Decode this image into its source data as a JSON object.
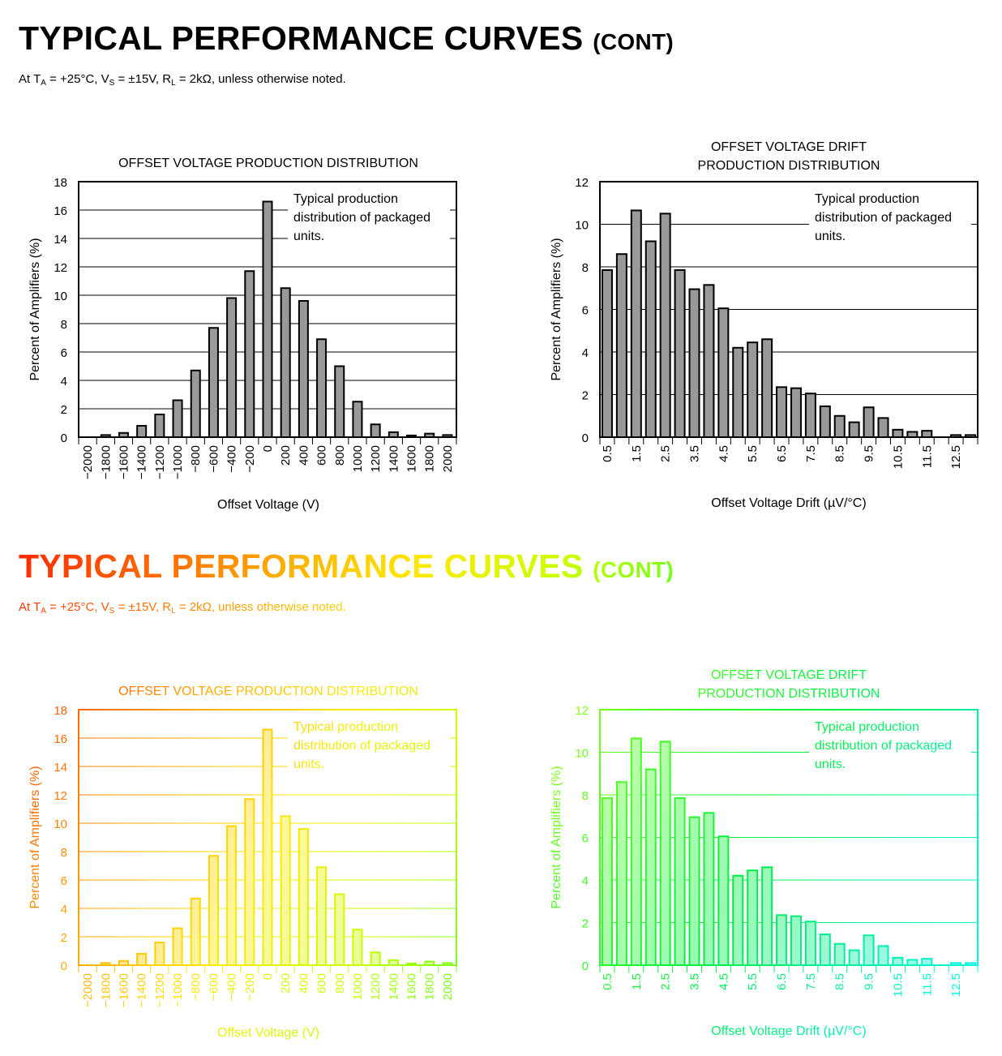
{
  "header": {
    "title": "TYPICAL PERFORMANCE CURVES",
    "title_suffix": "(CONT)",
    "conditions": {
      "p1": "At T",
      "s1": "A",
      "p2": " = +25°C, V",
      "s2": "S",
      "p3": " = ±15V,  R",
      "s3": "L",
      "p4": " = 2kΩ, unless otherwise noted."
    }
  },
  "colors": {
    "bar_fill": "#999999",
    "bar_stroke": "#000000",
    "grid": "#000000"
  },
  "chart_data": [
    {
      "type": "bar",
      "title": [
        "OFFSET VOLTAGE PRODUCTION DISTRIBUTION"
      ],
      "xlabel": "Offset Voltage (V)",
      "ylabel": "Percent of Amplifiers (%)",
      "ylim": [
        0,
        18
      ],
      "yticks": [
        "0",
        "2",
        "4",
        "6",
        "8",
        "10",
        "12",
        "14",
        "16",
        "18"
      ],
      "grid": true,
      "annotation": [
        "Typical production",
        "distribution of packaged",
        "units."
      ],
      "categories": [
        "−2000",
        "−1800",
        "−1600",
        "−1400",
        "−1200",
        "−1000",
        "−800",
        "−600",
        "−400",
        "−200",
        "0",
        "200",
        "400",
        "600",
        "800",
        "1000",
        "1200",
        "1400",
        "1600",
        "1800",
        "2000"
      ],
      "category_labels_shown": [
        true,
        true,
        true,
        true,
        true,
        true,
        true,
        true,
        true,
        true,
        true,
        true,
        true,
        true,
        true,
        true,
        true,
        true,
        true,
        true,
        true
      ],
      "values": [
        0,
        0.15,
        0.3,
        0.8,
        1.6,
        2.6,
        4.7,
        7.7,
        9.8,
        11.7,
        16.6,
        10.5,
        9.6,
        6.9,
        5.0,
        2.5,
        0.9,
        0.35,
        0.12,
        0.25,
        0.15
      ]
    },
    {
      "type": "bar",
      "title": [
        "OFFSET VOLTAGE DRIFT",
        "PRODUCTION DISTRIBUTION"
      ],
      "xlabel": "Offset Voltage Drift (µV/°C)",
      "ylabel": "Percent of Amplifiers (%)",
      "ylim": [
        0,
        12
      ],
      "yticks": [
        "0",
        "2",
        "4",
        "6",
        "8",
        "10",
        "12"
      ],
      "grid": true,
      "annotation": [
        "Typical production",
        "distribution of packaged",
        "units."
      ],
      "categories": [
        "0.5",
        "1.0",
        "1.5",
        "2.0",
        "2.5",
        "3.0",
        "3.5",
        "4.0",
        "4.5",
        "5.0",
        "5.5",
        "6.0",
        "6.5",
        "7.0",
        "7.5",
        "8.0",
        "8.5",
        "9.0",
        "9.5",
        "10.0",
        "10.5",
        "11.0",
        "11.5",
        "12.0",
        "12.5",
        "13.0"
      ],
      "category_labels_shown": [
        true,
        false,
        true,
        false,
        true,
        false,
        true,
        false,
        true,
        false,
        true,
        false,
        true,
        false,
        true,
        false,
        true,
        false,
        true,
        false,
        true,
        false,
        true,
        false,
        true,
        false
      ],
      "values": [
        7.85,
        8.6,
        10.65,
        9.2,
        10.5,
        7.85,
        6.95,
        7.15,
        6.05,
        4.2,
        4.45,
        4.6,
        2.35,
        2.3,
        2.05,
        1.45,
        1.0,
        0.7,
        1.4,
        0.9,
        0.35,
        0.25,
        0.3,
        0,
        0.1,
        0.1
      ]
    }
  ]
}
